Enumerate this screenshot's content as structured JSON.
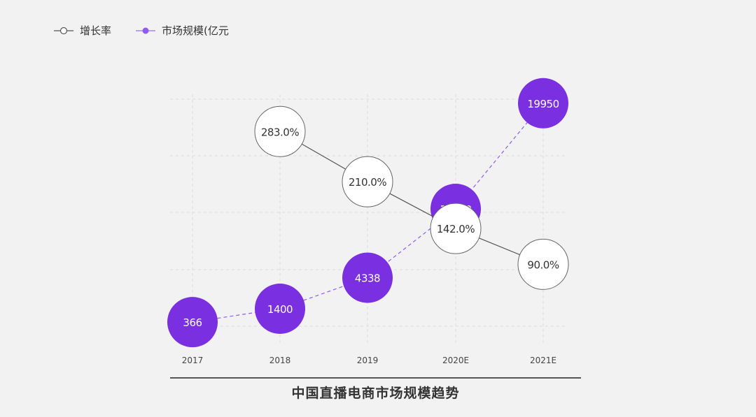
{
  "legend": {
    "items": [
      {
        "label": "增长率",
        "swatch": "hollow"
      },
      {
        "label": "市场规模(亿元",
        "swatch": "filled"
      }
    ]
  },
  "colors": {
    "background": "#f2f2f2",
    "market_size": "#7a2fe0",
    "growth_fill": "#ffffff",
    "growth_line": "#555555",
    "grid": "#dcdcdc"
  },
  "chart_data": {
    "type": "line",
    "title": "中国直播电商市场规模趋势",
    "categories": [
      "2017",
      "2018",
      "2019",
      "2020E",
      "2021E"
    ],
    "series": [
      {
        "name": "市场规模(亿元",
        "style": "dashed-filled-circles",
        "values": [
          366,
          1400,
          4338,
          10500,
          19950
        ],
        "labels": [
          "366",
          "1400",
          "4338",
          "10500",
          "19950"
        ]
      },
      {
        "name": "增长率",
        "style": "solid-hollow-circles",
        "values": [
          null,
          283.0,
          210.0,
          142.0,
          90.0
        ],
        "labels": [
          "",
          "283.0%",
          "210.0%",
          "142.0%",
          "90.0%"
        ]
      }
    ],
    "market_ylim": [
      0,
      20000
    ],
    "growth_ylim": [
      0,
      330
    ],
    "grid": "horizontal-dashed"
  }
}
